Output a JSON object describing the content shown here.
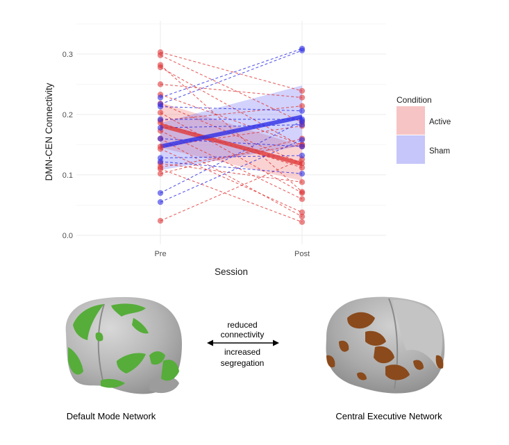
{
  "chart_data": {
    "type": "line",
    "xlabel": "Session",
    "ylabel": "DMN-CEN Connectivity",
    "categories": [
      "Pre",
      "Post"
    ],
    "ylim": [
      -0.015,
      0.355
    ],
    "yticks": [
      0.0,
      0.1,
      0.2,
      0.3
    ],
    "ytick_labels": [
      "0.0",
      "0.1",
      "0.2",
      "0.3"
    ],
    "grid": true,
    "legend": {
      "title": "Condition",
      "placement": "right",
      "entries": [
        {
          "name": "Active",
          "color": "#e0393a",
          "fill": "#f6c4c4"
        },
        {
          "name": "Sham",
          "color": "#2e2ee6",
          "fill": "#c6c6fa"
        }
      ]
    },
    "series": [
      {
        "name": "Active",
        "color": "#e0393a",
        "subjects": [
          [
            0.303,
            0.239
          ],
          [
            0.298,
            0.187
          ],
          [
            0.282,
            0.072
          ],
          [
            0.278,
            0.147
          ],
          [
            0.25,
            0.228
          ],
          [
            0.233,
            0.15
          ],
          [
            0.218,
            0.119
          ],
          [
            0.203,
            0.07
          ],
          [
            0.19,
            0.214
          ],
          [
            0.186,
            0.112
          ],
          [
            0.173,
            0.06
          ],
          [
            0.16,
            0.031
          ],
          [
            0.147,
            0.181
          ],
          [
            0.143,
            0.038
          ],
          [
            0.119,
            0.088
          ],
          [
            0.113,
            0.15
          ],
          [
            0.11,
            0.022
          ],
          [
            0.102,
            0.16
          ],
          [
            0.024,
            0.126
          ]
        ],
        "fit": [
          0.182,
          0.118
        ],
        "ci_lower": [
          0.145,
          0.09
        ],
        "ci_upper": [
          0.22,
          0.148
        ]
      },
      {
        "name": "Sham",
        "color": "#2e2ee6",
        "subjects": [
          [
            0.228,
            0.309
          ],
          [
            0.217,
            0.306
          ],
          [
            0.213,
            0.206
          ],
          [
            0.192,
            0.192
          ],
          [
            0.178,
            0.183
          ],
          [
            0.16,
            0.147
          ],
          [
            0.128,
            0.132
          ],
          [
            0.122,
            0.102
          ],
          [
            0.07,
            0.189
          ],
          [
            0.055,
            0.158
          ]
        ],
        "fit": [
          0.147,
          0.196
        ],
        "ci_lower": [
          0.108,
          0.148
        ],
        "ci_upper": [
          0.186,
          0.248
        ]
      }
    ]
  },
  "brain_left": {
    "caption": "Default Mode Network",
    "network_color": "#56ad3a"
  },
  "brain_right": {
    "caption": "Central Executive Network",
    "network_color": "#8a4a1c"
  },
  "annotation": {
    "top_lines": [
      "reduced",
      "connectivity"
    ],
    "bottom_lines": [
      "increased",
      "segregation"
    ]
  }
}
